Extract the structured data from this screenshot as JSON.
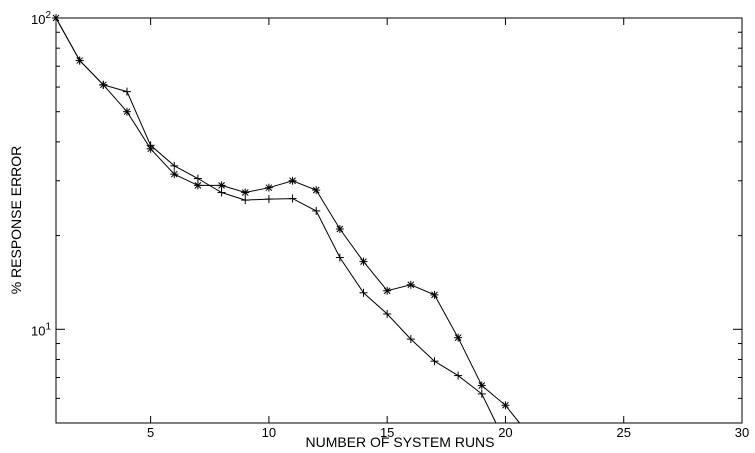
{
  "chart_data": {
    "type": "line",
    "title": "",
    "xlabel": "NUMBER OF SYSTEM RUNS",
    "ylabel": "% RESPONSE ERROR",
    "xlim": [
      1,
      30
    ],
    "ylim": [
      5,
      100
    ],
    "yscale": "log",
    "grid": false,
    "legend": "none",
    "x_ticks": [
      5,
      10,
      15,
      20,
      25,
      30
    ],
    "x_tick_labels": [
      "5",
      "10",
      "15",
      "20",
      "25",
      "30"
    ],
    "y_ticks": [
      10,
      100
    ],
    "y_tick_labels": [
      {
        "base": "10",
        "exp": "1"
      },
      {
        "base": "10",
        "exp": "2"
      }
    ],
    "series": [
      {
        "marker": "asterisk",
        "color": "#000000",
        "x": [
          1,
          2,
          3,
          4,
          5,
          6,
          7,
          8,
          9,
          10,
          11,
          12,
          13,
          14,
          15,
          16,
          17,
          18,
          19,
          20,
          20.6
        ],
        "y": [
          100,
          73,
          61,
          50,
          38,
          31.5,
          29,
          29,
          27.5,
          28.5,
          30,
          28,
          21,
          16.5,
          13.3,
          13.9,
          12.9,
          9.4,
          6.6,
          5.7,
          5
        ]
      },
      {
        "marker": "plus",
        "color": "#000000",
        "x": [
          1,
          2,
          3,
          4,
          5,
          6,
          7,
          8,
          9,
          10,
          11,
          12,
          13,
          14,
          15,
          16,
          17,
          18,
          19,
          19.6
        ],
        "y": [
          100,
          73,
          61,
          58,
          39,
          33.5,
          30.5,
          27.5,
          26,
          26.2,
          26.3,
          24,
          17,
          13.1,
          11.2,
          9.3,
          7.9,
          7.1,
          6.2,
          5
        ]
      }
    ]
  }
}
